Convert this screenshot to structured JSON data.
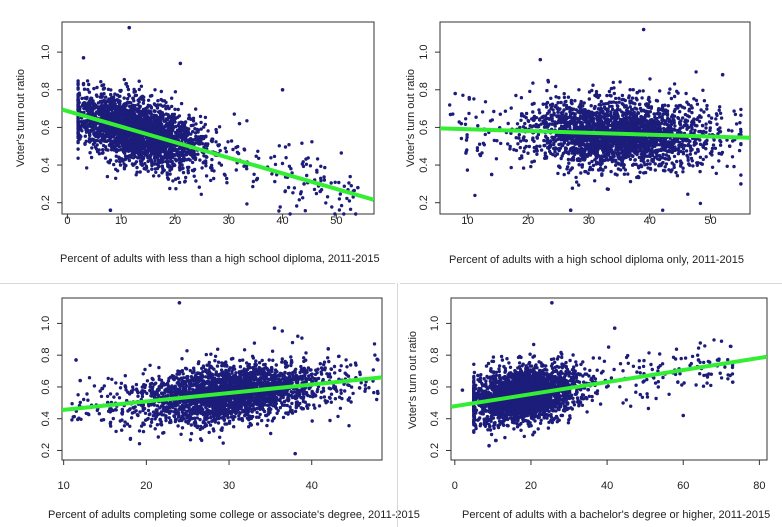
{
  "chart_data": [
    {
      "type": "scatter",
      "title": "",
      "xlabel": "Percent of adults with less than a high school diploma, 2011-2015",
      "ylabel": "Voter's turn out ratio",
      "xlim": [
        -1,
        57
      ],
      "ylim": [
        0.14,
        1.16
      ],
      "xticks": [
        0,
        10,
        20,
        30,
        40,
        50
      ],
      "yticks": [
        0.2,
        0.4,
        0.6,
        0.8,
        1.0
      ],
      "ytick_labels": [
        "0.2",
        "0.4",
        "0.6",
        "0.8",
        "1.0"
      ],
      "point_color": "#1c1c7a",
      "line_color": "#33ee33",
      "trend_line": {
        "x": [
          -1,
          57
        ],
        "y": [
          0.695,
          0.215
        ]
      },
      "cloud": {
        "x_mean": 13,
        "x_sd": 6,
        "x_range": [
          2,
          54
        ],
        "y_sd": 0.085,
        "n": 2600,
        "y_range": [
          0.14,
          1.16
        ]
      },
      "outliers": [
        {
          "x": 11.5,
          "y": 1.13
        },
        {
          "x": 21,
          "y": 0.94
        },
        {
          "x": 3,
          "y": 0.97
        },
        {
          "x": 40,
          "y": 0.8
        },
        {
          "x": 54,
          "y": 0.28
        },
        {
          "x": 8,
          "y": 0.16
        },
        {
          "x": 32,
          "y": 0.62
        },
        {
          "x": 44,
          "y": 0.3
        },
        {
          "x": 47,
          "y": 0.26
        }
      ]
    },
    {
      "type": "scatter",
      "title": "",
      "xlabel": "Percent of adults with a high school diploma only, 2011-2015",
      "ylabel": "Voter's turn out ratio",
      "xlim": [
        5.5,
        56.5
      ],
      "ylim": [
        0.14,
        1.16
      ],
      "xticks": [
        10,
        20,
        30,
        40,
        50
      ],
      "yticks": [
        0.2,
        0.4,
        0.6,
        0.8,
        1.0
      ],
      "ytick_labels": [
        "0.2",
        "0.4",
        "0.6",
        "0.8",
        "1.0"
      ],
      "point_color": "#1c1c7a",
      "line_color": "#33ee33",
      "trend_line": {
        "x": [
          5.5,
          56.5
        ],
        "y": [
          0.595,
          0.545
        ]
      },
      "cloud": {
        "x_mean": 35,
        "x_sd": 7,
        "x_range": [
          7,
          55
        ],
        "y_sd": 0.09,
        "n": 2600,
        "y_range": [
          0.14,
          1.16
        ]
      },
      "outliers": [
        {
          "x": 39,
          "y": 1.12
        },
        {
          "x": 22,
          "y": 0.96
        },
        {
          "x": 52,
          "y": 0.88
        },
        {
          "x": 27,
          "y": 0.16
        },
        {
          "x": 55,
          "y": 0.3
        },
        {
          "x": 8,
          "y": 0.78
        },
        {
          "x": 9,
          "y": 0.62
        },
        {
          "x": 14,
          "y": 0.35
        }
      ]
    },
    {
      "type": "scatter",
      "title": "",
      "xlabel": "Percent of adults completing some college or associate's degree, 2011-2015",
      "ylabel": "",
      "xlim": [
        9.8,
        48.5
      ],
      "ylim": [
        0.14,
        1.16
      ],
      "xticks": [
        10,
        20,
        30,
        40
      ],
      "yticks": [
        0.2,
        0.4,
        0.6,
        0.8,
        1.0
      ],
      "ytick_labels": [
        "0.2",
        "0.4",
        "0.6",
        "0.8",
        "1.0"
      ],
      "point_color": "#1c1c7a",
      "line_color": "#33ee33",
      "trend_line": {
        "x": [
          9.8,
          48.5
        ],
        "y": [
          0.455,
          0.66
        ]
      },
      "cloud": {
        "x_mean": 30,
        "x_sd": 5.5,
        "x_range": [
          11,
          48
        ],
        "y_sd": 0.09,
        "n": 2600,
        "y_range": [
          0.14,
          1.16
        ]
      },
      "outliers": [
        {
          "x": 24,
          "y": 1.13
        },
        {
          "x": 35.5,
          "y": 0.97
        },
        {
          "x": 11.5,
          "y": 0.77
        },
        {
          "x": 12,
          "y": 0.64
        },
        {
          "x": 38,
          "y": 0.18
        },
        {
          "x": 48,
          "y": 0.56
        },
        {
          "x": 42,
          "y": 0.84
        }
      ]
    },
    {
      "type": "scatter",
      "title": "",
      "xlabel": "Percent of adults with a bachelor's degree or higher, 2011-2015",
      "ylabel": "Voter's turn out ratio",
      "xlim": [
        -1,
        82
      ],
      "ylim": [
        0.14,
        1.16
      ],
      "xticks": [
        0,
        20,
        40,
        60,
        80
      ],
      "yticks": [
        0.2,
        0.4,
        0.6,
        0.8,
        1.0
      ],
      "ytick_labels": [
        "0.2",
        "0.4",
        "0.6",
        "0.8",
        "1.0"
      ],
      "point_color": "#1c1c7a",
      "line_color": "#33ee33",
      "trend_line": {
        "x": [
          -1,
          82
        ],
        "y": [
          0.475,
          0.79
        ]
      },
      "cloud": {
        "x_mean": 18,
        "x_sd": 7,
        "x_range": [
          5,
          73
        ],
        "y_sd": 0.085,
        "n": 2600,
        "y_range": [
          0.14,
          1.16
        ]
      },
      "outliers": [
        {
          "x": 25.5,
          "y": 1.13
        },
        {
          "x": 42,
          "y": 0.97
        },
        {
          "x": 73,
          "y": 0.63
        },
        {
          "x": 60,
          "y": 0.42
        },
        {
          "x": 9,
          "y": 0.23
        },
        {
          "x": 2,
          "y": 0.58
        },
        {
          "x": 64,
          "y": 0.77
        }
      ]
    }
  ]
}
